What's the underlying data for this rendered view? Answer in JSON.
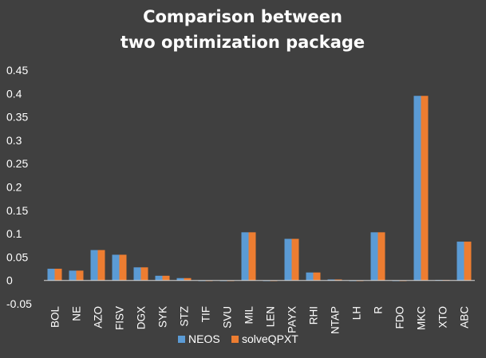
{
  "chart_data": {
    "type": "bar",
    "title_line1": "Comparison between",
    "title_line2": "two optimization package",
    "categories": [
      "BOL",
      "NE",
      "AZO",
      "FISV",
      "DGX",
      "SYK",
      "STZ",
      "TIF",
      "SVU",
      "MIL",
      "LEN",
      "PAYX",
      "RHI",
      "NTAP",
      "LH",
      "R",
      "FDO",
      "MKC",
      "XTO",
      "ABC"
    ],
    "series": [
      {
        "name": "NEOS",
        "color": "#5b9bd5",
        "values": [
          0.025,
          0.021,
          0.065,
          0.055,
          0.028,
          0.01,
          0.005,
          0,
          0,
          0.103,
          0,
          0.089,
          0.017,
          0.002,
          0,
          0.103,
          0,
          0.395,
          0.001,
          0.083
        ]
      },
      {
        "name": "solveQPXT",
        "color": "#ed7d31",
        "values": [
          0.025,
          0.021,
          0.065,
          0.055,
          0.028,
          0.01,
          0.005,
          0,
          0,
          0.103,
          0,
          0.089,
          0.017,
          0.002,
          0,
          0.103,
          0,
          0.395,
          0.001,
          0.083
        ]
      }
    ],
    "ylim": [
      -0.05,
      0.45
    ],
    "yticks": [
      "-0.05",
      "0",
      "0.05",
      "0.1",
      "0.15",
      "0.2",
      "0.25",
      "0.3",
      "0.35",
      "0.4",
      "0.45"
    ],
    "grid": false,
    "legend_position": "bottom"
  }
}
